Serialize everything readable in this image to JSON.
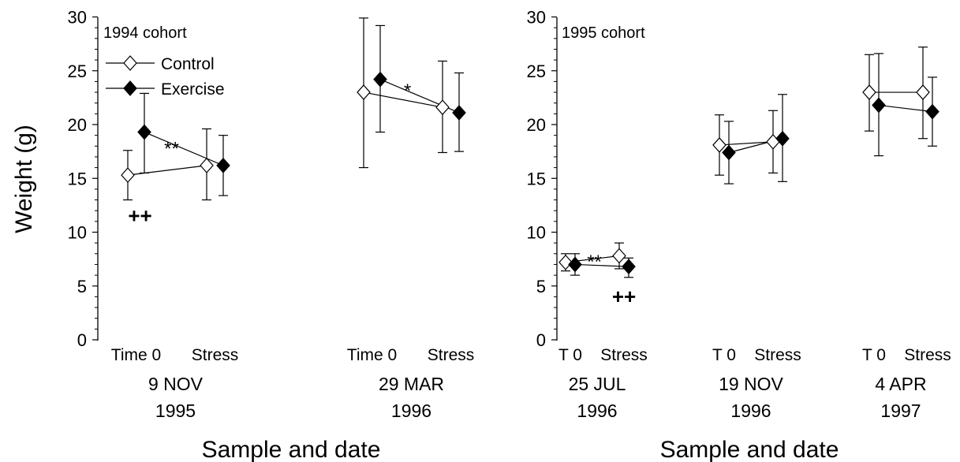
{
  "chart_data": [
    {
      "type": "scatter",
      "panel": "left",
      "annotation_label": "1994 cohort",
      "ylabel": "Weight (g)",
      "xlabel": "Sample and date",
      "ylim": [
        0,
        30
      ],
      "yticks": [
        "0",
        "5",
        "10",
        "15",
        "20",
        "25",
        "30"
      ],
      "legend": {
        "placement": "top-left",
        "entries": [
          "Control",
          "Exercise"
        ]
      },
      "groups": [
        {
          "labels": [
            "Time 0",
            "Stress"
          ],
          "date": "9 NOV",
          "year": "1995"
        },
        {
          "labels": [
            "Time 0",
            "Stress"
          ],
          "date": "29 MAR",
          "year": "1996"
        }
      ],
      "series": [
        {
          "name": "Control",
          "marker": "open-diamond",
          "points": [
            {
              "group": 0,
              "sample": 0,
              "y": 15.3,
              "err_low": 13.0,
              "err_high": 17.6
            },
            {
              "group": 0,
              "sample": 1,
              "y": 16.2,
              "err_low": 13.0,
              "err_high": 19.6
            },
            {
              "group": 1,
              "sample": 0,
              "y": 23.0,
              "err_low": 16.0,
              "err_high": 29.9
            },
            {
              "group": 1,
              "sample": 1,
              "y": 21.6,
              "err_low": 17.4,
              "err_high": 25.9
            }
          ]
        },
        {
          "name": "Exercise",
          "marker": "filled-diamond",
          "points": [
            {
              "group": 0,
              "sample": 0,
              "y": 19.3,
              "err_low": 15.5,
              "err_high": 22.9
            },
            {
              "group": 0,
              "sample": 1,
              "y": 16.2,
              "err_low": 13.4,
              "err_high": 19.0
            },
            {
              "group": 1,
              "sample": 0,
              "y": 24.2,
              "err_low": 19.3,
              "err_high": 29.2
            },
            {
              "group": 1,
              "sample": 1,
              "y": 21.1,
              "err_low": 17.5,
              "err_high": 24.8
            }
          ]
        }
      ],
      "annotations": [
        {
          "text": "**",
          "group": 0,
          "sample": 0.45,
          "y": 17.9
        },
        {
          "text": "++",
          "group": 0,
          "sample": 0.05,
          "y": 11.6,
          "bold": true
        },
        {
          "text": "*",
          "group": 1,
          "sample": 0.45,
          "y": 23.3
        }
      ]
    },
    {
      "type": "scatter",
      "panel": "right",
      "annotation_label": "1995 cohort",
      "ylabel": "",
      "xlabel": "Sample and date",
      "ylim": [
        0,
        30
      ],
      "yticks": [
        "0",
        "5",
        "10",
        "15",
        "20",
        "25",
        "30"
      ],
      "groups": [
        {
          "labels": [
            "T 0",
            "Stress"
          ],
          "date": "25 JUL",
          "year": "1996"
        },
        {
          "labels": [
            "T 0",
            "Stress"
          ],
          "date": "19 NOV",
          "year": "1996"
        },
        {
          "labels": [
            "T 0",
            "Stress"
          ],
          "date": "4 APR",
          "year": "1997"
        }
      ],
      "series": [
        {
          "name": "Control",
          "marker": "open-diamond",
          "points": [
            {
              "group": 0,
              "sample": 0,
              "y": 7.2,
              "err_low": 6.4,
              "err_high": 8.0
            },
            {
              "group": 0,
              "sample": 1,
              "y": 7.8,
              "err_low": 6.6,
              "err_high": 9.0
            },
            {
              "group": 1,
              "sample": 0,
              "y": 18.1,
              "err_low": 15.3,
              "err_high": 20.9
            },
            {
              "group": 1,
              "sample": 1,
              "y": 18.4,
              "err_low": 15.5,
              "err_high": 21.3
            },
            {
              "group": 2,
              "sample": 0,
              "y": 23.0,
              "err_low": 19.4,
              "err_high": 26.5
            },
            {
              "group": 2,
              "sample": 1,
              "y": 23.0,
              "err_low": 18.7,
              "err_high": 27.2
            }
          ]
        },
        {
          "name": "Exercise",
          "marker": "filled-diamond",
          "points": [
            {
              "group": 0,
              "sample": 0,
              "y": 7.0,
              "err_low": 6.0,
              "err_high": 8.0
            },
            {
              "group": 0,
              "sample": 1,
              "y": 6.8,
              "err_low": 5.8,
              "err_high": 7.6
            },
            {
              "group": 1,
              "sample": 0,
              "y": 17.4,
              "err_low": 14.5,
              "err_high": 20.3
            },
            {
              "group": 1,
              "sample": 1,
              "y": 18.7,
              "err_low": 14.7,
              "err_high": 22.8
            },
            {
              "group": 2,
              "sample": 0,
              "y": 21.8,
              "err_low": 17.1,
              "err_high": 26.6
            },
            {
              "group": 2,
              "sample": 1,
              "y": 21.2,
              "err_low": 18.0,
              "err_high": 24.4
            }
          ]
        }
      ],
      "annotations": [
        {
          "text": "**",
          "group": 0,
          "sample": 0.45,
          "y": 7.4
        },
        {
          "text": "++",
          "group": 0,
          "sample": 1.0,
          "y": 4.1,
          "bold": true
        }
      ]
    }
  ]
}
